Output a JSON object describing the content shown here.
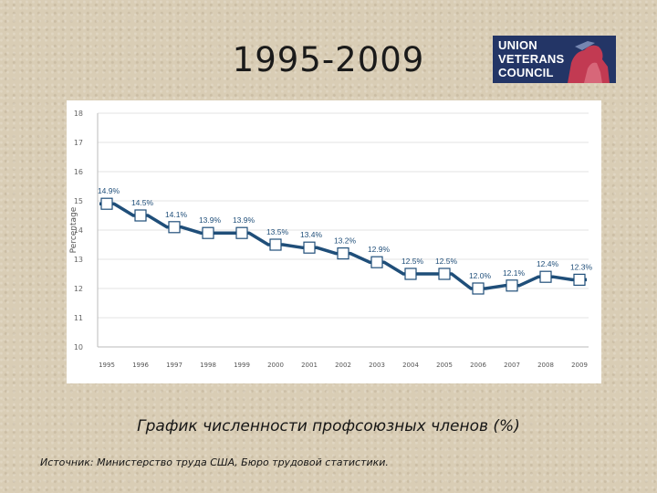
{
  "slide": {
    "title": "1995-2009",
    "caption": "График численности профсоюзных членов (%)",
    "source": "Источник: Министерство труда США, Бюро трудовой статистики."
  },
  "logo": {
    "line1": "UNION",
    "line2": "VETERANS",
    "line3": "COUNCIL",
    "colors": {
      "navy": "#233566",
      "red": "#d8283a",
      "white": "#ffffff"
    }
  },
  "chart_data": {
    "type": "line",
    "title": "",
    "xlabel": "",
    "ylabel": "Percentage",
    "categories": [
      "1995",
      "1996",
      "1997",
      "1998",
      "1999",
      "2000",
      "2001",
      "2002",
      "2003",
      "2004",
      "2005",
      "2006",
      "2007",
      "2008",
      "2009"
    ],
    "series": [
      {
        "values": [
          14.9,
          14.5,
          14.1,
          13.9,
          13.9,
          13.5,
          13.4,
          13.2,
          12.9,
          12.5,
          12.5,
          12.0,
          12.1,
          12.4,
          12.3
        ]
      }
    ],
    "data_labels": [
      "14.9%",
      "14.5%",
      "14.1%",
      "13.9%",
      "13.9%",
      "13.5%",
      "13.4%",
      "13.2%",
      "12.9%",
      "12.5%",
      "12.5%",
      "12.0%",
      "12.1%",
      "12.4%",
      "12.3%"
    ],
    "ylim": [
      10,
      18
    ],
    "yticks": [
      "10",
      "11",
      "12",
      "13",
      "14",
      "15",
      "16",
      "17",
      "18"
    ],
    "grid": "horizontal",
    "line_color": "#1f4e79"
  }
}
